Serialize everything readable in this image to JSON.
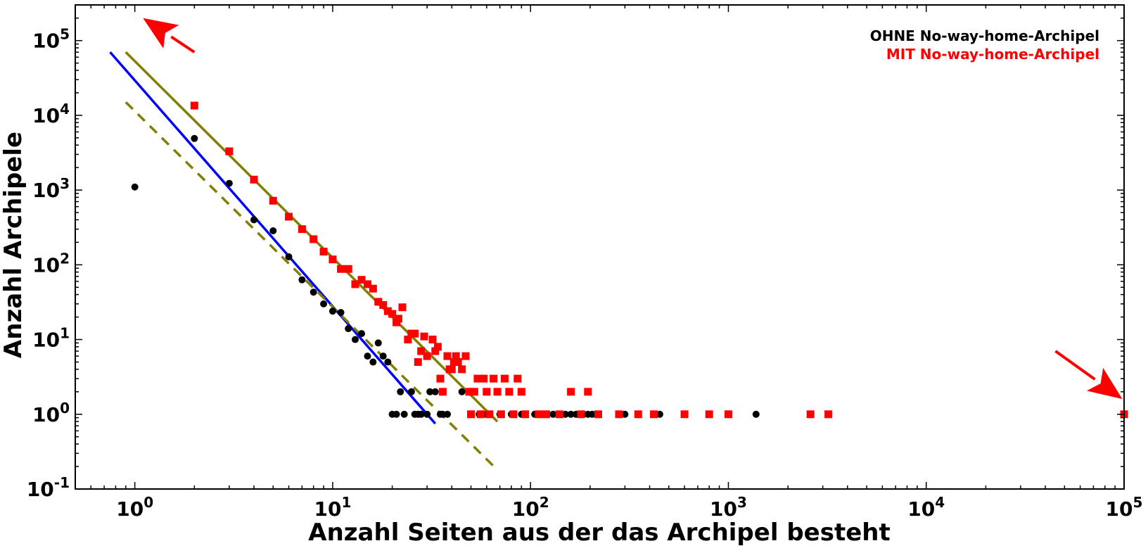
{
  "chart_data": {
    "type": "scatter",
    "xscale": "log",
    "yscale": "log",
    "xlim": [
      0.5,
      100000
    ],
    "ylim": [
      0.1,
      300000
    ],
    "xlabel": "Anzahl Seiten aus der das Archipel besteht",
    "ylabel": "Anzahl Archipele",
    "x_ticks": [
      {
        "base": "10",
        "exp": "0",
        "value": 1
      },
      {
        "base": "10",
        "exp": "1",
        "value": 10
      },
      {
        "base": "10",
        "exp": "2",
        "value": 100
      },
      {
        "base": "10",
        "exp": "3",
        "value": 1000
      },
      {
        "base": "10",
        "exp": "4",
        "value": 10000
      },
      {
        "base": "10",
        "exp": "5",
        "value": 100000
      }
    ],
    "y_ticks": [
      {
        "base": "10",
        "exp": "-1",
        "value": 0.1
      },
      {
        "base": "10",
        "exp": "0",
        "value": 1
      },
      {
        "base": "10",
        "exp": "1",
        "value": 10
      },
      {
        "base": "10",
        "exp": "2",
        "value": 100
      },
      {
        "base": "10",
        "exp": "3",
        "value": 1000
      },
      {
        "base": "10",
        "exp": "4",
        "value": 10000
      },
      {
        "base": "10",
        "exp": "5",
        "value": 100000
      }
    ],
    "legend": {
      "placement": "top-right",
      "entries": [
        {
          "label": "OHNE No-way-home-Archipel",
          "color": "#000000"
        },
        {
          "label": "MIT No-way-home-Archipel",
          "color": "#ff0000"
        }
      ]
    },
    "series": [
      {
        "name": "OHNE No-way-home-Archipel",
        "color": "#000000",
        "marker": "circle",
        "points": [
          [
            1,
            1100
          ],
          [
            2,
            4900
          ],
          [
            3,
            1230
          ],
          [
            4,
            400
          ],
          [
            5,
            285
          ],
          [
            6,
            128
          ],
          [
            7,
            63
          ],
          [
            8,
            43
          ],
          [
            9,
            30
          ],
          [
            10,
            24
          ],
          [
            11,
            23
          ],
          [
            12,
            14
          ],
          [
            13,
            10
          ],
          [
            14,
            12
          ],
          [
            15,
            6
          ],
          [
            16,
            5
          ],
          [
            17,
            9
          ],
          [
            18,
            6
          ],
          [
            19,
            5
          ],
          [
            20,
            1
          ],
          [
            21,
            1
          ],
          [
            22,
            2
          ],
          [
            23,
            1
          ],
          [
            25,
            2
          ],
          [
            26,
            1
          ],
          [
            27,
            1
          ],
          [
            28,
            1
          ],
          [
            30,
            1
          ],
          [
            31,
            2
          ],
          [
            33,
            2
          ],
          [
            35,
            1
          ],
          [
            36,
            1
          ],
          [
            38,
            1
          ],
          [
            45,
            2
          ],
          [
            50,
            2
          ],
          [
            55,
            1
          ],
          [
            60,
            1
          ],
          [
            70,
            1
          ],
          [
            80,
            1
          ],
          [
            90,
            1
          ],
          [
            105,
            1
          ],
          [
            110,
            1
          ],
          [
            120,
            1
          ],
          [
            130,
            1
          ],
          [
            140,
            1
          ],
          [
            150,
            1
          ],
          [
            160,
            1
          ],
          [
            170,
            1
          ],
          [
            185,
            1
          ],
          [
            195,
            1
          ],
          [
            205,
            1
          ],
          [
            220,
            1
          ],
          [
            300,
            1
          ],
          [
            450,
            1
          ],
          [
            1380,
            1
          ]
        ]
      },
      {
        "name": "MIT No-way-home-Archipel",
        "color": "#ff0000",
        "marker": "square",
        "points": [
          [
            2,
            13500
          ],
          [
            3,
            3300
          ],
          [
            4,
            1380
          ],
          [
            5,
            720
          ],
          [
            6,
            440
          ],
          [
            7,
            300
          ],
          [
            8,
            220
          ],
          [
            9,
            150
          ],
          [
            10,
            118
          ],
          [
            11,
            88
          ],
          [
            12,
            88
          ],
          [
            13,
            55
          ],
          [
            14,
            63
          ],
          [
            15,
            55
          ],
          [
            16,
            48
          ],
          [
            17,
            32
          ],
          [
            18,
            29
          ],
          [
            19,
            24
          ],
          [
            20,
            22
          ],
          [
            21,
            17
          ],
          [
            21.5,
            19
          ],
          [
            22.5,
            27
          ],
          [
            24,
            10
          ],
          [
            25,
            12
          ],
          [
            26,
            12
          ],
          [
            27,
            5
          ],
          [
            28,
            7
          ],
          [
            29,
            11
          ],
          [
            30,
            6
          ],
          [
            32,
            10
          ],
          [
            33,
            7
          ],
          [
            34,
            8
          ],
          [
            35,
            3
          ],
          [
            36,
            2
          ],
          [
            38,
            6
          ],
          [
            39,
            4
          ],
          [
            40,
            4
          ],
          [
            41,
            5
          ],
          [
            42,
            6
          ],
          [
            43,
            5
          ],
          [
            45,
            4
          ],
          [
            47,
            6
          ],
          [
            49,
            2
          ],
          [
            50,
            1
          ],
          [
            52,
            2
          ],
          [
            54,
            3
          ],
          [
            56,
            1
          ],
          [
            58,
            3
          ],
          [
            60,
            2
          ],
          [
            62,
            1
          ],
          [
            65,
            3
          ],
          [
            68,
            2
          ],
          [
            71,
            1
          ],
          [
            74,
            3
          ],
          [
            78,
            2
          ],
          [
            82,
            1
          ],
          [
            86,
            3
          ],
          [
            90,
            2
          ],
          [
            94,
            1
          ],
          [
            110,
            1
          ],
          [
            120,
            1
          ],
          [
            140,
            1
          ],
          [
            160,
            2
          ],
          [
            180,
            1
          ],
          [
            195,
            2
          ],
          [
            220,
            1
          ],
          [
            280,
            1
          ],
          [
            350,
            1
          ],
          [
            420,
            1
          ],
          [
            600,
            1
          ],
          [
            800,
            1
          ],
          [
            1000,
            1
          ],
          [
            2600,
            1
          ],
          [
            3200,
            1
          ],
          [
            100000,
            1
          ]
        ]
      }
    ],
    "fit_lines": [
      {
        "color": "#0000ff",
        "style": "solid",
        "x": [
          0.75,
          33
        ],
        "y": [
          70000,
          0.75
        ]
      },
      {
        "color": "#808000",
        "style": "solid",
        "x": [
          0.9,
          68
        ],
        "y": [
          70000,
          0.8
        ]
      },
      {
        "color": "#808000",
        "style": "dashed",
        "x": [
          0.9,
          68
        ],
        "y": [
          15000,
          0.18
        ]
      }
    ],
    "arrows": [
      {
        "color": "#ff0000",
        "direction": "up-left",
        "from": [
          2,
          70000
        ],
        "to": [
          1.1,
          200000
        ]
      },
      {
        "color": "#ff0000",
        "direction": "down-right",
        "from": [
          45000,
          7
        ],
        "to": [
          98000,
          1.6
        ]
      }
    ]
  }
}
